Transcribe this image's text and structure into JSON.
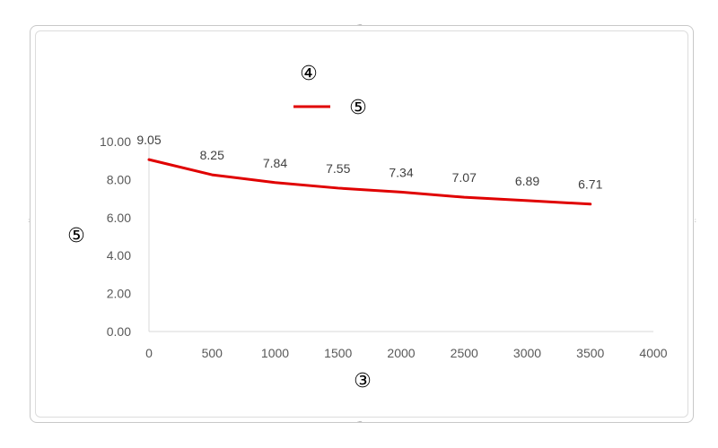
{
  "chart_data": {
    "type": "line",
    "title": "④",
    "xlabel": "③",
    "ylabel": "⑤",
    "x": [
      0,
      500,
      1000,
      1500,
      2000,
      2500,
      3000,
      3500
    ],
    "series": [
      {
        "name": "⑤",
        "color": "#e00000",
        "values": [
          9.05,
          8.25,
          7.84,
          7.55,
          7.34,
          7.07,
          6.89,
          6.71
        ]
      }
    ],
    "data_labels": [
      "9.05",
      "8.25",
      "7.84",
      "7.55",
      "7.34",
      "7.07",
      "6.89",
      "6.71"
    ],
    "xlim": [
      0,
      4000
    ],
    "ylim": [
      0,
      10
    ],
    "x_ticks": [
      "0",
      "500",
      "1000",
      "1500",
      "2000",
      "2500",
      "3000",
      "3500",
      "4000"
    ],
    "y_ticks": [
      "0.00",
      "2.00",
      "4.00",
      "6.00",
      "8.00",
      "10.00"
    ],
    "legend_position": "top",
    "grid": false,
    "axis_color": "#d9d9d9"
  }
}
